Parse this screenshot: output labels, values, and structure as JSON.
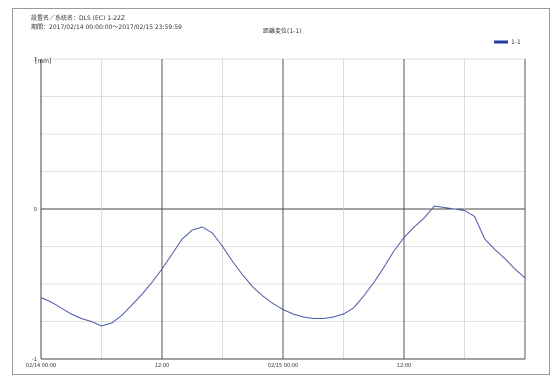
{
  "header": {
    "line1": "設置名／系統名：DLS (EC) 1-22Z",
    "line2": "期間：2017/02/14 00:00:00〜2017/02/15 23:59:59",
    "chart_title": "距離変位(1-1)",
    "legend_label": "1-1"
  },
  "colors": {
    "series": "#4a59a8",
    "grid": "#c4c4c4",
    "axis": "#444444",
    "legend": "#1f3d9c"
  },
  "chart_data": {
    "type": "line",
    "title": "距離変位(1-1)",
    "y_unit": "[mm]",
    "y_tick_labels": [
      "1",
      "0",
      "-1"
    ],
    "ylim": [
      -1,
      1
    ],
    "xlim": [
      0,
      48
    ],
    "x_unit": "hours from 2017/02/14 00:00",
    "x_tick_labels": [
      {
        "h": 0,
        "label": "02/14 00:00"
      },
      {
        "h": 12,
        "label": "12:00"
      },
      {
        "h": 24,
        "label": "02/15 00:00"
      },
      {
        "h": 36,
        "label": "12:00"
      }
    ],
    "legend": "top-right",
    "grid": true,
    "series": [
      {
        "name": "1-1",
        "points": [
          [
            0,
            -0.59
          ],
          [
            1,
            -0.62
          ],
          [
            2,
            -0.66
          ],
          [
            3,
            -0.7
          ],
          [
            4,
            -0.73
          ],
          [
            5,
            -0.75
          ],
          [
            6,
            -0.78
          ],
          [
            7,
            -0.76
          ],
          [
            8,
            -0.71
          ],
          [
            9,
            -0.64
          ],
          [
            10,
            -0.57
          ],
          [
            11,
            -0.49
          ],
          [
            12,
            -0.4
          ],
          [
            13,
            -0.3
          ],
          [
            14,
            -0.2
          ],
          [
            15,
            -0.14
          ],
          [
            16,
            -0.12
          ],
          [
            17,
            -0.16
          ],
          [
            18,
            -0.25
          ],
          [
            19,
            -0.35
          ],
          [
            20,
            -0.44
          ],
          [
            21,
            -0.52
          ],
          [
            22,
            -0.58
          ],
          [
            23,
            -0.63
          ],
          [
            24,
            -0.67
          ],
          [
            25,
            -0.7
          ],
          [
            26,
            -0.72
          ],
          [
            27,
            -0.73
          ],
          [
            28,
            -0.73
          ],
          [
            29,
            -0.72
          ],
          [
            30,
            -0.7
          ],
          [
            31,
            -0.66
          ],
          [
            32,
            -0.58
          ],
          [
            33,
            -0.49
          ],
          [
            34,
            -0.39
          ],
          [
            35,
            -0.28
          ],
          [
            36,
            -0.19
          ],
          [
            37,
            -0.12
          ],
          [
            38,
            -0.06
          ],
          [
            39,
            0.02
          ],
          [
            40,
            0.01
          ],
          [
            41,
            0.0
          ],
          [
            42,
            -0.01
          ],
          [
            43,
            -0.05
          ],
          [
            44,
            -0.2
          ],
          [
            45,
            -0.27
          ],
          [
            46,
            -0.33
          ],
          [
            47,
            -0.4
          ],
          [
            48,
            -0.46
          ]
        ]
      }
    ]
  }
}
